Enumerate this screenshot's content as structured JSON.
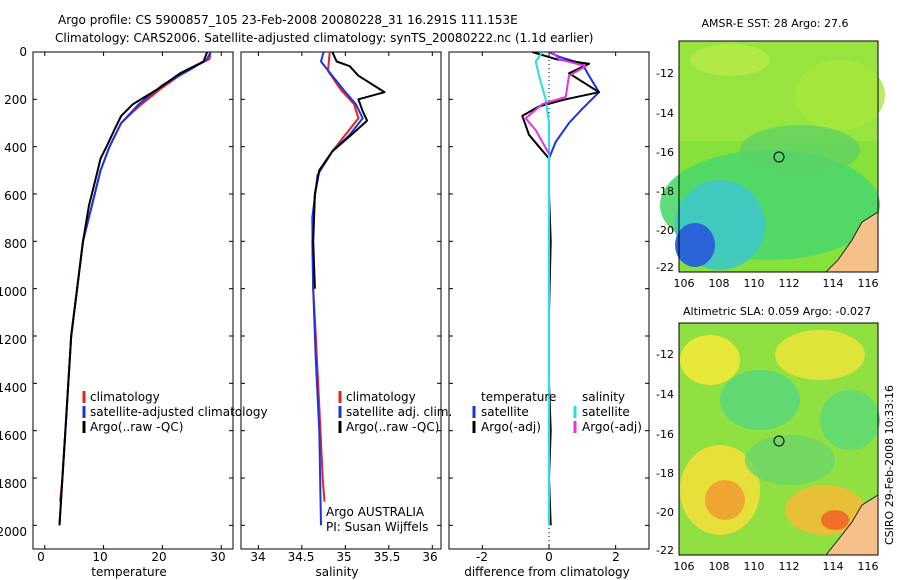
{
  "title": {
    "line1": "Argo profile: CS 5900857_105 23-Feb-2008 20080228_31 16.291S 111.153E",
    "line2": "Climatology: CARS2006. Satellite-adjusted climatology: synTS_20080222.nc (1.1d earlier)"
  },
  "colors": {
    "clim": "#e8231e",
    "sat": "#1b33e6",
    "argo": "#000000",
    "sat_sal": "#22e0e6",
    "argo_sal_adj": "#e832e0"
  },
  "legends": {
    "temperature": [
      "climatology",
      "satellite-adjusted climatology",
      "Argo(..raw -QC)"
    ],
    "salinity": [
      "climatology",
      "satellite adj. clim.",
      "Argo(..raw -QC)"
    ],
    "difference": {
      "temp_header": "temperature",
      "sal_header": "salinity",
      "temp_items": [
        "satellite",
        "Argo(-adj)"
      ],
      "sal_items": [
        "satellite",
        "Argo(-adj)"
      ]
    }
  },
  "annotation": {
    "line1": "Argo AUSTRALIA",
    "line2": "PI: Susan Wijffels"
  },
  "maps": {
    "sst_title": "AMSR-E SST: 28 Argo: 27.6",
    "sla_title": "Altimetric SLA: 0.059 Argo: -0.027",
    "xticks": [
      "106",
      "108",
      "110",
      "112",
      "114",
      "116"
    ],
    "yticks": [
      "-12",
      "-14",
      "-16",
      "-18",
      "-20",
      "-22"
    ],
    "float_position": {
      "lon": 111.153,
      "lat": -16.291
    }
  },
  "side_label": "CSIRO 29-Feb-2008 10:33:16",
  "chart_data": [
    {
      "type": "line",
      "name": "temperature",
      "xlabel": "temperature",
      "ylabel": "",
      "xlim": [
        -2,
        32
      ],
      "ylim": [
        2100,
        0
      ],
      "xticks": [
        "0",
        "10",
        "20",
        "30"
      ],
      "yticks": [
        "0",
        "200",
        "400",
        "600",
        "800",
        "1000",
        "1200",
        "1400",
        "1600",
        "1800",
        "2000"
      ],
      "series": [
        {
          "name": "climatology",
          "color": "clim",
          "points": [
            [
              28.2,
              0
            ],
            [
              28,
              30
            ],
            [
              24,
              80
            ],
            [
              20,
              150
            ],
            [
              16,
              230
            ],
            [
              13,
              300
            ],
            [
              11,
              400
            ],
            [
              9.5,
              500
            ],
            [
              8,
              650
            ],
            [
              6.5,
              800
            ],
            [
              5.5,
              1000
            ],
            [
              4.5,
              1200
            ],
            [
              4,
              1400
            ],
            [
              3.5,
              1600
            ],
            [
              3,
              1800
            ],
            [
              2.6,
              1900
            ]
          ]
        },
        {
          "name": "satellite-adjusted climatology",
          "color": "sat",
          "points": [
            [
              28.2,
              0
            ],
            [
              27.6,
              30
            ],
            [
              25,
              70
            ],
            [
              20,
              140
            ],
            [
              16,
              220
            ],
            [
              13,
              300
            ],
            [
              11,
              400
            ],
            [
              9.5,
              500
            ],
            [
              8,
              650
            ],
            [
              6.5,
              800
            ],
            [
              5.5,
              1000
            ],
            [
              4.5,
              1200
            ],
            [
              4,
              1400
            ],
            [
              3.5,
              1600
            ],
            [
              3,
              1800
            ],
            [
              2.5,
              2000
            ]
          ]
        },
        {
          "name": "Argo(..raw -QC)",
          "color": "argo",
          "points": [
            [
              27.6,
              0
            ],
            [
              27,
              40
            ],
            [
              23,
              90
            ],
            [
              19,
              160
            ],
            [
              15,
              220
            ],
            [
              13,
              270
            ],
            [
              12,
              320
            ],
            [
              10.5,
              400
            ],
            [
              9.5,
              450
            ],
            [
              8.5,
              550
            ],
            [
              7.5,
              650
            ],
            [
              6.5,
              800
            ],
            [
              5.5,
              1000
            ],
            [
              4.5,
              1200
            ],
            [
              4,
              1400
            ],
            [
              3.5,
              1600
            ],
            [
              3,
              1800
            ],
            [
              2.5,
              2000
            ]
          ]
        }
      ]
    },
    {
      "type": "line",
      "name": "salinity",
      "xlabel": "salinity",
      "ylabel": "",
      "xlim": [
        33.8,
        36.1
      ],
      "ylim": [
        2100,
        0
      ],
      "xticks": [
        "34",
        "34.5",
        "35",
        "35.5",
        "36"
      ],
      "series": [
        {
          "name": "climatology",
          "color": "clim",
          "points": [
            [
              34.82,
              0
            ],
            [
              34.8,
              80
            ],
            [
              34.95,
              160
            ],
            [
              35.1,
              220
            ],
            [
              35.15,
              280
            ],
            [
              35,
              350
            ],
            [
              34.85,
              420
            ],
            [
              34.7,
              500
            ],
            [
              34.65,
              600
            ],
            [
              34.62,
              800
            ],
            [
              34.63,
              1000
            ],
            [
              34.66,
              1200
            ],
            [
              34.7,
              1500
            ],
            [
              34.74,
              1800
            ],
            [
              34.76,
              1900
            ]
          ]
        },
        {
          "name": "satellite adj. clim.",
          "color": "sat",
          "points": [
            [
              34.75,
              0
            ],
            [
              34.72,
              40
            ],
            [
              34.85,
              100
            ],
            [
              34.98,
              160
            ],
            [
              35.12,
              220
            ],
            [
              35.2,
              280
            ],
            [
              35.05,
              350
            ],
            [
              34.85,
              420
            ],
            [
              34.68,
              520
            ],
            [
              34.62,
              700
            ],
            [
              34.63,
              1000
            ],
            [
              34.66,
              1300
            ],
            [
              34.7,
              1600
            ],
            [
              34.72,
              2000
            ]
          ]
        },
        {
          "name": "Argo(..raw -QC)",
          "color": "argo",
          "points": [
            [
              34.85,
              0
            ],
            [
              34.9,
              40
            ],
            [
              35.05,
              60
            ],
            [
              35.15,
              100
            ],
            [
              35.45,
              170
            ],
            [
              35.15,
              200
            ],
            [
              35.2,
              250
            ],
            [
              35.25,
              290
            ],
            [
              35.1,
              340
            ],
            [
              34.85,
              420
            ],
            [
              34.7,
              500
            ],
            [
              34.65,
              600
            ],
            [
              34.63,
              800
            ],
            [
              34.65,
              1000
            ]
          ]
        }
      ]
    },
    {
      "type": "line",
      "name": "difference",
      "xlabel": "difference from climatology",
      "ylabel": "",
      "xlim": [
        -3,
        3
      ],
      "ylim": [
        2100,
        0
      ],
      "xticks": [
        "-2",
        "0",
        "2"
      ],
      "series": [
        {
          "name": "temperature satellite",
          "color": "sat",
          "points": [
            [
              0,
              0
            ],
            [
              0.3,
              20
            ],
            [
              1,
              50
            ],
            [
              1.2,
              100
            ],
            [
              1.5,
              170
            ],
            [
              1,
              240
            ],
            [
              0.6,
              300
            ],
            [
              0.2,
              380
            ],
            [
              0,
              450
            ]
          ]
        },
        {
          "name": "temperature Argo(-adj)",
          "color": "argo",
          "points": [
            [
              -0.5,
              0
            ],
            [
              0.2,
              30
            ],
            [
              1.2,
              50
            ],
            [
              0.6,
              90
            ],
            [
              1.5,
              170
            ],
            [
              0.5,
              200
            ],
            [
              -0.3,
              230
            ],
            [
              -0.8,
              270
            ],
            [
              -0.6,
              350
            ],
            [
              -0.3,
              400
            ],
            [
              0,
              450
            ],
            [
              0,
              600
            ],
            [
              0.05,
              800
            ],
            [
              0,
              1100
            ],
            [
              0,
              1400
            ],
            [
              0.05,
              1600
            ],
            [
              0,
              1800
            ],
            [
              0.05,
              2000
            ]
          ]
        },
        {
          "name": "salinity satellite",
          "color": "sat_sal",
          "points": [
            [
              -0.2,
              0
            ],
            [
              -0.4,
              40
            ],
            [
              -0.3,
              100
            ],
            [
              -0.1,
              200
            ],
            [
              0,
              300
            ],
            [
              0,
              500
            ],
            [
              0,
              800
            ],
            [
              0,
              1200
            ],
            [
              0,
              1600
            ],
            [
              0,
              2000
            ]
          ]
        },
        {
          "name": "salinity Argo(-adj)",
          "color": "argo_sal_adj",
          "points": [
            [
              0.1,
              0
            ],
            [
              0.3,
              30
            ],
            [
              1.1,
              60
            ],
            [
              0.6,
              100
            ],
            [
              0.5,
              190
            ],
            [
              -0.2,
              220
            ],
            [
              -0.7,
              280
            ],
            [
              -0.4,
              330
            ],
            [
              -0.2,
              380
            ],
            [
              0,
              430
            ]
          ]
        }
      ]
    }
  ]
}
